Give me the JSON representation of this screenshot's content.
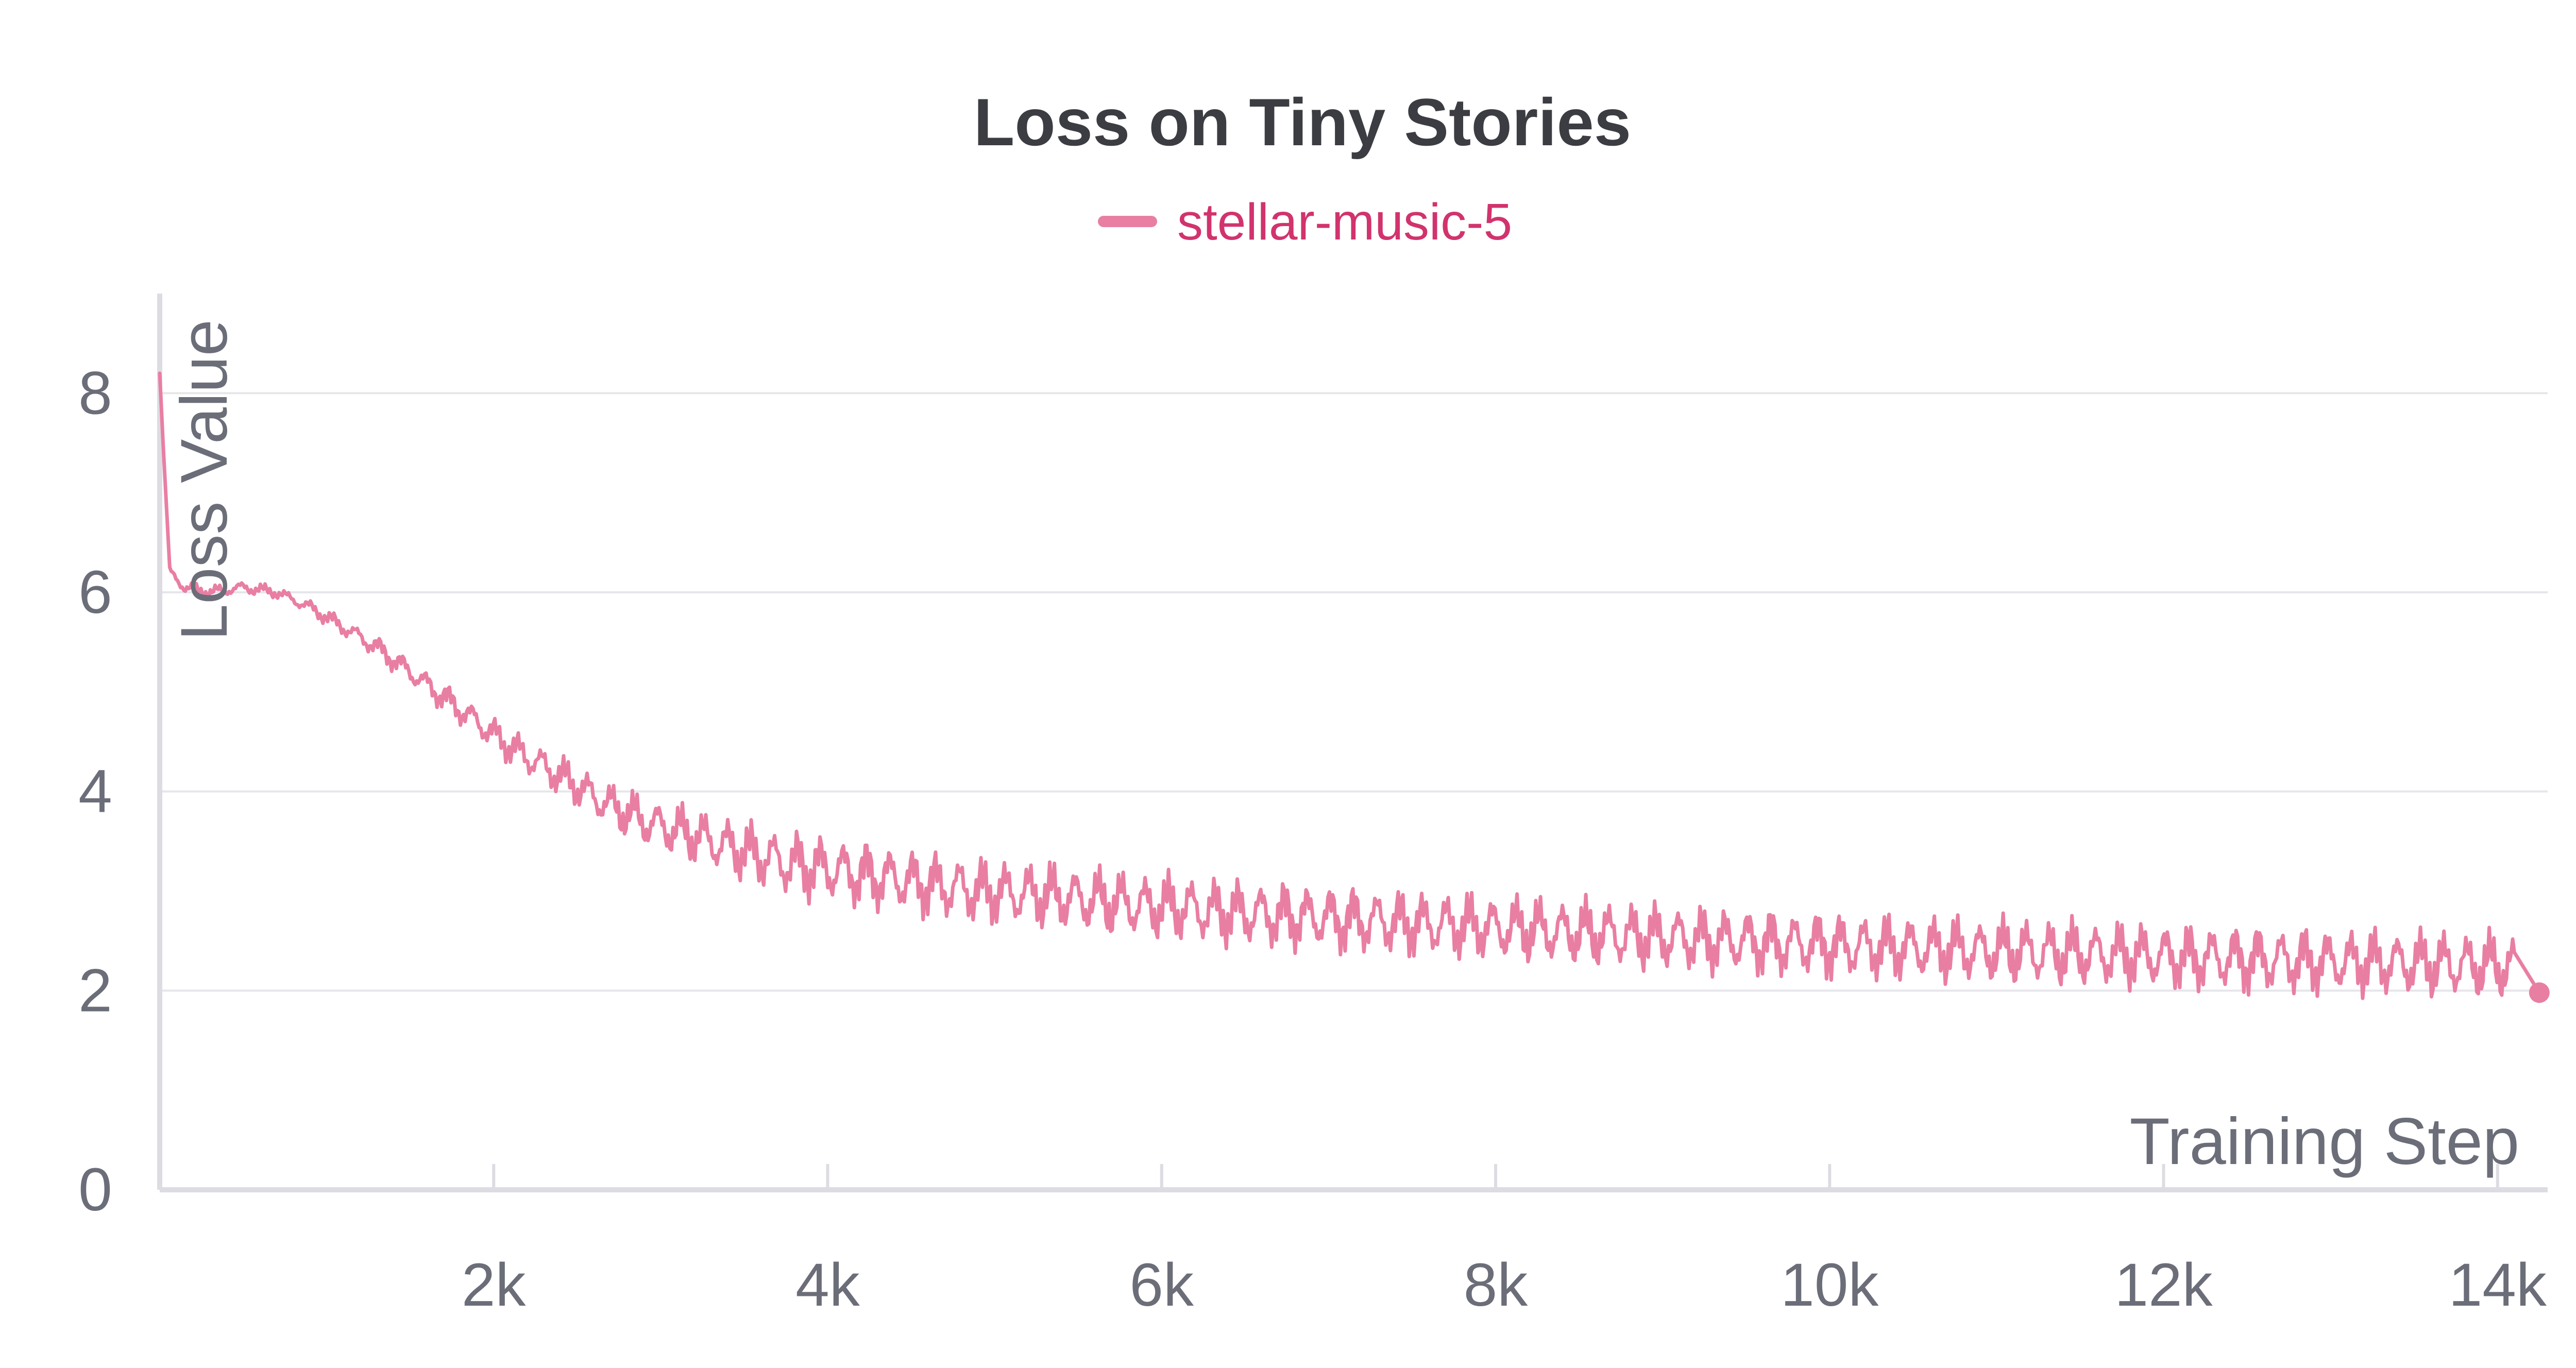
{
  "chart_data": {
    "type": "line",
    "title": "Loss on Tiny Stories",
    "xlabel": "Training Step",
    "ylabel": "Loss Value",
    "xlim": [
      0,
      14300
    ],
    "ylim": [
      0,
      9
    ],
    "x_ticks": [
      2000,
      4000,
      6000,
      8000,
      10000,
      12000,
      14000
    ],
    "x_tick_labels": [
      "2k",
      "4k",
      "6k",
      "8k",
      "10k",
      "12k",
      "14k"
    ],
    "y_ticks": [
      0,
      2,
      4,
      6,
      8
    ],
    "y_tick_labels": [
      "0",
      "2",
      "4",
      "6",
      "8"
    ],
    "grid": true,
    "legend": "top-center",
    "series": [
      {
        "name": "stellar-music-5",
        "color": "#e97ea3",
        "x": [
          0,
          20,
          60,
          150,
          300,
          500,
          700,
          900,
          1100,
          1300,
          1500,
          1700,
          1900,
          2100,
          2300,
          2500,
          2700,
          2900,
          3100,
          3300,
          3500,
          3700,
          3900,
          4100,
          4300,
          4500,
          4700,
          4900,
          5100,
          5300,
          5500,
          5700,
          5900,
          6100,
          6300,
          6500,
          6700,
          6900,
          7100,
          7300,
          7500,
          7700,
          7900,
          8100,
          8300,
          8500,
          8700,
          8900,
          9100,
          9300,
          9500,
          9700,
          9900,
          10100,
          10300,
          10500,
          10700,
          10900,
          11100,
          11300,
          11500,
          11700,
          11900,
          12100,
          12300,
          12500,
          12700,
          12900,
          13100,
          13300,
          13500,
          13700,
          13900,
          14100,
          14250
        ],
        "y": [
          8.2,
          7.5,
          6.2,
          6.05,
          6.0,
          6.05,
          6.0,
          5.85,
          5.65,
          5.45,
          5.2,
          4.95,
          4.7,
          4.45,
          4.25,
          4.05,
          3.85,
          3.7,
          3.6,
          3.5,
          3.4,
          3.3,
          3.25,
          3.2,
          3.15,
          3.1,
          3.05,
          3.0,
          2.98,
          2.95,
          2.92,
          2.88,
          2.85,
          2.83,
          2.8,
          2.78,
          2.76,
          2.74,
          2.72,
          2.7,
          2.68,
          2.66,
          2.64,
          2.62,
          2.6,
          2.58,
          2.56,
          2.54,
          2.53,
          2.51,
          2.5,
          2.48,
          2.47,
          2.45,
          2.44,
          2.43,
          2.41,
          2.4,
          2.39,
          2.38,
          2.37,
          2.36,
          2.35,
          2.34,
          2.33,
          2.32,
          2.31,
          2.3,
          2.29,
          2.28,
          2.27,
          2.26,
          2.25,
          2.24,
          1.98
        ]
      }
    ]
  }
}
